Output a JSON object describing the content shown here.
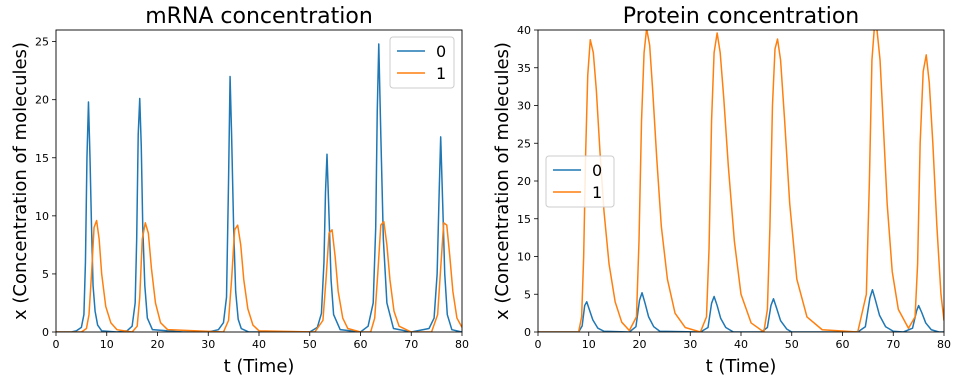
{
  "chart_data": [
    {
      "type": "line",
      "title": "mRNA concentration",
      "xlabel": "t (Time)",
      "ylabel": "x (Concentration of molecules)",
      "xlim": [
        0,
        80
      ],
      "ylim": [
        0,
        26
      ],
      "xticks": [
        "0",
        "10",
        "20",
        "30",
        "40",
        "50",
        "60",
        "70",
        "80"
      ],
      "yticks": [
        "0",
        "5",
        "10",
        "15",
        "20",
        "25"
      ],
      "legend_position": "top-right",
      "grid": false,
      "series": [
        {
          "name": "0",
          "color": "#1f77b4",
          "x": [
            0,
            3,
            4,
            5,
            5.5,
            5.8,
            6.1,
            6.4,
            6.7,
            7.0,
            7.3,
            7.7,
            8.2,
            9,
            12,
            14,
            15,
            15.6,
            15.9,
            16.2,
            16.5,
            16.8,
            17.1,
            17.5,
            18.0,
            19,
            25,
            30,
            32,
            33,
            33.6,
            34.0,
            34.3,
            34.6,
            35.0,
            35.4,
            35.9,
            36.5,
            38,
            45,
            50,
            51.5,
            52.3,
            52.8,
            53.1,
            53.4,
            53.8,
            54.2,
            54.7,
            56,
            60,
            61.5,
            62.5,
            63.0,
            63.3,
            63.6,
            64.0,
            64.5,
            65.2,
            66.5,
            70,
            73.5,
            74.5,
            75.1,
            75.5,
            75.8,
            76.2,
            76.6,
            77.1,
            78,
            80
          ],
          "y": [
            0,
            0,
            0.1,
            0.4,
            1.5,
            6,
            15,
            19.8,
            15,
            9,
            4,
            1.8,
            0.6,
            0.1,
            0,
            0.1,
            0.5,
            2.5,
            8,
            17,
            20.1,
            16,
            9,
            4,
            1.2,
            0.2,
            0,
            0,
            0.2,
            0.8,
            3,
            13,
            22,
            17,
            9,
            3.5,
            1.1,
            0.3,
            0,
            0,
            0,
            0.4,
            1.6,
            6,
            12,
            15.3,
            10,
            4.5,
            1.5,
            0.2,
            0,
            0.5,
            2.5,
            9,
            19,
            24.8,
            17,
            8,
            2.5,
            0.3,
            0,
            0.3,
            1.2,
            5,
            12,
            16.8,
            11,
            5,
            1.5,
            0.2,
            0
          ]
        },
        {
          "name": "1",
          "color": "#ff7f0e",
          "x": [
            0,
            5,
            6.0,
            6.5,
            7.0,
            7.5,
            8.0,
            8.5,
            9.0,
            9.8,
            10.8,
            12,
            15,
            16.0,
            16.5,
            17.0,
            17.6,
            18.2,
            18.8,
            19.6,
            20.6,
            22,
            33,
            34.0,
            34.6,
            35.2,
            35.8,
            36.4,
            37.0,
            37.8,
            38.8,
            40,
            51,
            52.6,
            53.2,
            53.8,
            54.4,
            55.0,
            55.6,
            56.5,
            57.5,
            60,
            62,
            62.8,
            63.4,
            64.0,
            64.6,
            65.2,
            65.8,
            66.6,
            67.6,
            70,
            74,
            75.2,
            75.8,
            76.4,
            77.0,
            77.6,
            78.2,
            79.0,
            80
          ],
          "y": [
            0,
            0,
            0.3,
            1.5,
            5,
            9,
            9.6,
            8,
            5,
            2.2,
            0.8,
            0.2,
            0,
            0.5,
            3,
            8,
            9.4,
            8.5,
            5.5,
            2.5,
            0.8,
            0.2,
            0,
            1,
            4.5,
            8.8,
            9.2,
            7.5,
            4.5,
            2,
            0.6,
            0.1,
            0,
            1,
            4.5,
            8.5,
            8.8,
            6.5,
            3.5,
            1.2,
            0.3,
            0,
            0,
            1.2,
            5,
            9.2,
            9.5,
            7.5,
            4.5,
            1.8,
            0.5,
            0,
            0,
            1.5,
            5.5,
            9.4,
            9.2,
            6.5,
            3.5,
            1.2,
            0.4
          ]
        }
      ]
    },
    {
      "type": "line",
      "title": "Protein concentration",
      "xlabel": "t (Time)",
      "ylabel": "x (Concentration of molecules)",
      "xlim": [
        0,
        80
      ],
      "ylim": [
        0,
        40
      ],
      "xticks": [
        "0",
        "10",
        "20",
        "30",
        "40",
        "50",
        "60",
        "70",
        "80"
      ],
      "yticks": [
        "0",
        "5",
        "10",
        "15",
        "20",
        "25",
        "30",
        "35",
        "40"
      ],
      "legend_position": "center-left",
      "grid": false,
      "series": [
        {
          "name": "0",
          "color": "#1f77b4",
          "x": [
            0,
            8,
            8.7,
            9.2,
            9.6,
            10.1,
            10.8,
            11.8,
            13,
            18,
            19.3,
            20.0,
            20.5,
            21.1,
            21.8,
            22.8,
            24,
            32,
            33.5,
            34.2,
            34.7,
            35.3,
            36.0,
            37,
            38.5,
            44,
            45.2,
            45.9,
            46.4,
            47.0,
            47.8,
            49,
            50,
            63,
            64.5,
            65.4,
            65.9,
            66.5,
            67.3,
            68.5,
            70,
            72,
            73.8,
            74.6,
            75.0,
            75.6,
            76.4,
            77.5,
            79,
            80
          ],
          "y": [
            0,
            0,
            0.8,
            3.5,
            4,
            3,
            1.6,
            0.5,
            0.1,
            0,
            0.7,
            4.2,
            5.2,
            3.8,
            2,
            0.7,
            0.1,
            0,
            0.6,
            3.8,
            4.7,
            3.5,
            1.8,
            0.6,
            0,
            0,
            0.6,
            3.5,
            4.4,
            3.2,
            1.5,
            0.4,
            0,
            0,
            0.7,
            4.5,
            5.6,
            4.2,
            2.2,
            0.7,
            0.1,
            0,
            0.5,
            2.8,
            3.5,
            2.6,
            1.2,
            0.3,
            0,
            0
          ]
        },
        {
          "name": "1",
          "color": "#ff7f0e",
          "x": [
            0,
            8,
            8.6,
            9.0,
            9.4,
            9.8,
            10.3,
            10.9,
            11.5,
            12.2,
            13.0,
            14.0,
            15.2,
            16.5,
            18,
            19.4,
            19.9,
            20.4,
            20.9,
            21.4,
            22.0,
            22.6,
            23.4,
            24.3,
            25.5,
            27,
            29,
            32,
            33.2,
            33.7,
            34.2,
            34.7,
            35.3,
            35.9,
            36.6,
            37.5,
            38.7,
            40,
            42,
            44.5,
            45.2,
            45.7,
            46.2,
            46.7,
            47.2,
            47.8,
            48.6,
            49.6,
            51,
            53,
            56,
            63,
            64.7,
            65.3,
            65.8,
            66.3,
            66.8,
            67.4,
            68.0,
            68.8,
            69.8,
            71,
            73,
            74.3,
            74.8,
            75.3,
            75.9,
            76.5,
            77.1,
            77.8,
            78.6,
            79.4,
            80
          ],
          "y": [
            0,
            0,
            2,
            10,
            24,
            34,
            38.7,
            37,
            32,
            24,
            16,
            9,
            4,
            1.3,
            0.2,
            2,
            12,
            28,
            37,
            40.2,
            38,
            32,
            23,
            14,
            7,
            2.5,
            0.6,
            0,
            2,
            11,
            28,
            37,
            39.6,
            37,
            31,
            22,
            12,
            5,
            1.2,
            0,
            3,
            14,
            30,
            37.5,
            38.8,
            36,
            28,
            17,
            7,
            2,
            0.3,
            0,
            5,
            20,
            36,
            40.5,
            40,
            36,
            28,
            17,
            8,
            3,
            0.5,
            2,
            9,
            25,
            34.5,
            36.7,
            33,
            25,
            14,
            5,
            1.5
          ]
        }
      ]
    }
  ]
}
